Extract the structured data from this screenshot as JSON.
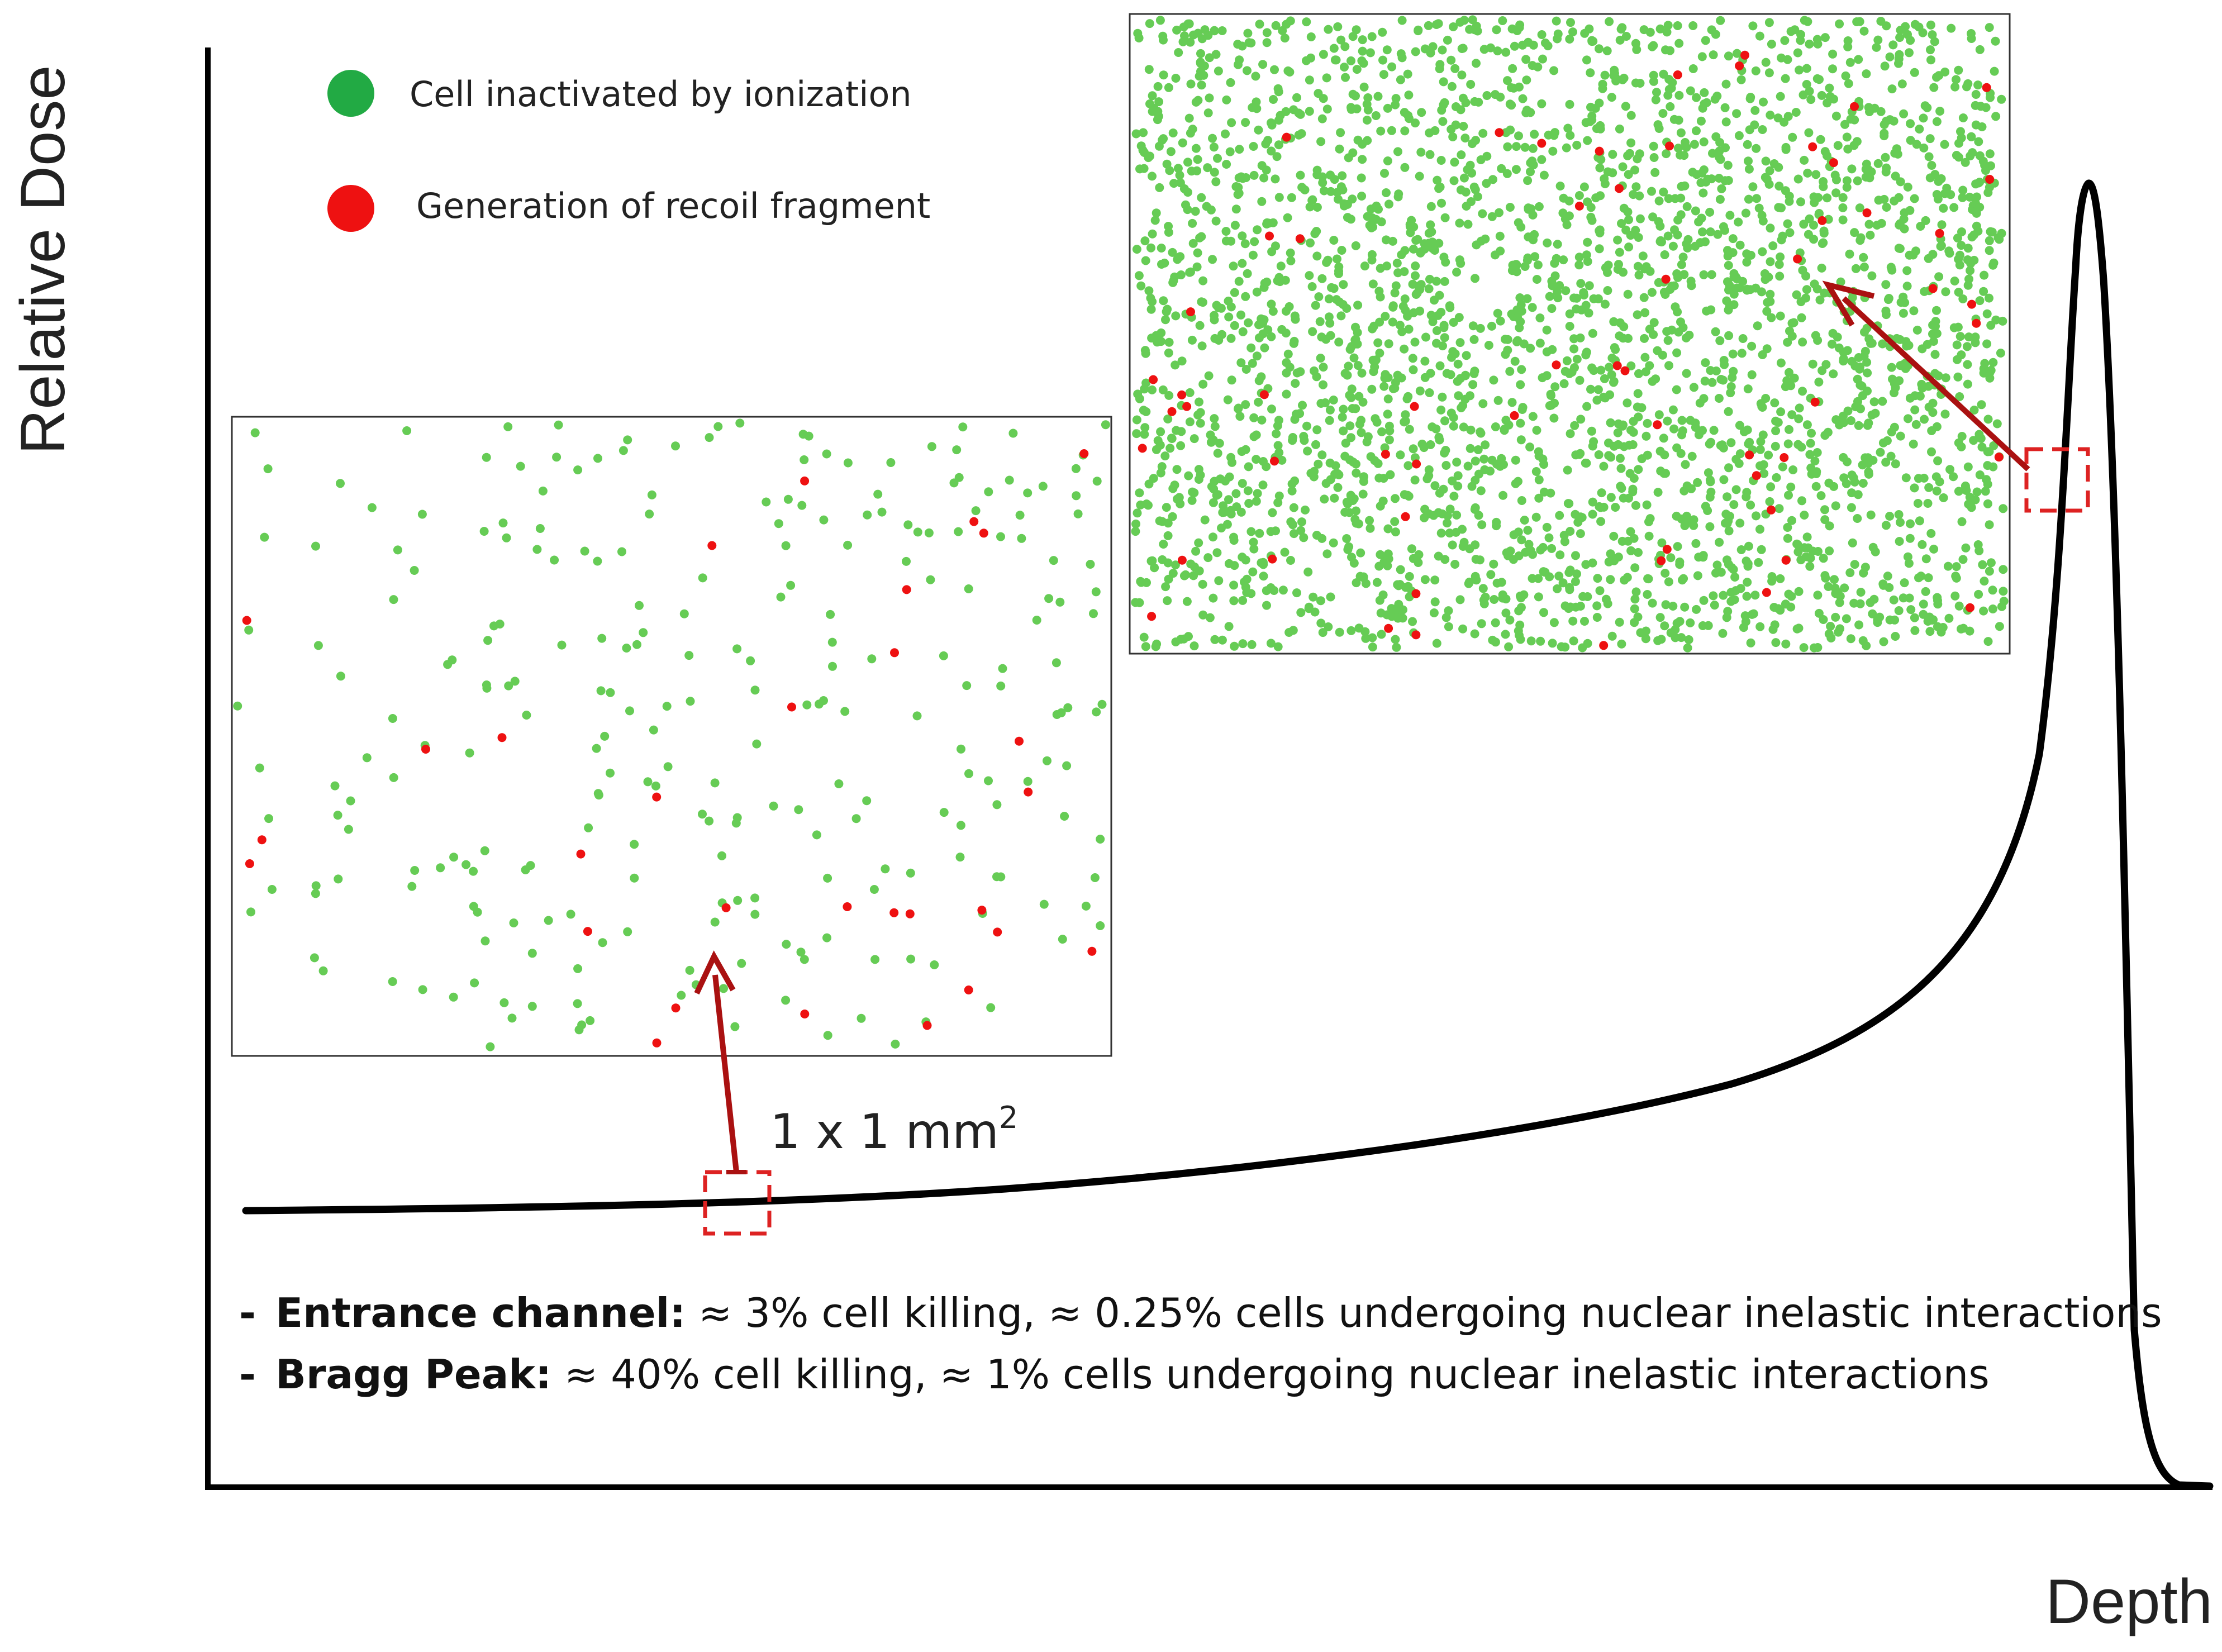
{
  "axes": {
    "y_label": "Relative Dose",
    "x_label": "Depth"
  },
  "legend": {
    "ionization_label": "Cell inactivated by ionization",
    "recoil_label": "Generation of  recoil fragment"
  },
  "colors": {
    "ionization": "#66cc55",
    "legend_ionization": "#22aa44",
    "recoil": "#ee1111",
    "arrow": "#aa1111",
    "region_box": "#dd2222",
    "curve": "#000000"
  },
  "scale_label": {
    "text": "1 x 1 mm",
    "superscript": "2"
  },
  "notes": [
    {
      "bullet": "-",
      "term": "Entrance channel:",
      "text": " ≈ 3% cell killing, ≈ 0.25% cells undergoing nuclear inelastic interactions"
    },
    {
      "bullet": "-",
      "term": "Bragg Peak:",
      "text": " ≈ 40% cell killing, ≈ 1% cells undergoing nuclear inelastic interactions"
    }
  ],
  "panels": {
    "entrance": {
      "ionization_cell_count": 260,
      "recoil_cell_count": 30
    },
    "bragg_peak": {
      "ionization_cell_count": 3000,
      "recoil_cell_count": 60
    }
  }
}
